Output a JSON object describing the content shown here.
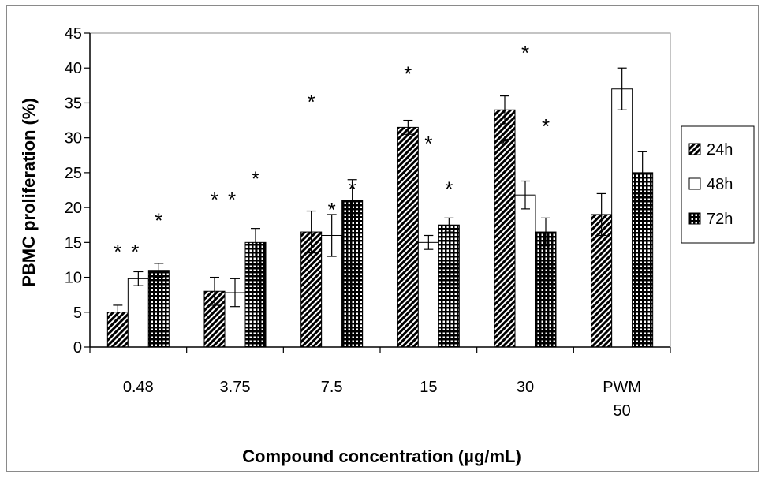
{
  "chart_data": {
    "type": "bar",
    "title": "",
    "xlabel": "Compound concentration (µg/mL)",
    "ylabel": "PBMC proliferation (%)",
    "ylim": [
      0,
      45
    ],
    "yticks": [
      0,
      5,
      10,
      15,
      20,
      25,
      30,
      35,
      40,
      45
    ],
    "categories": [
      "0.48",
      "3.75",
      "7.5",
      "15",
      "30",
      "PWM 50"
    ],
    "category_lines": [
      [
        "0.48"
      ],
      [
        "3.75"
      ],
      [
        "7.5"
      ],
      [
        "15"
      ],
      [
        "30"
      ],
      [
        "PWM",
        "50"
      ]
    ],
    "grid": false,
    "legend_position": "right",
    "series": [
      {
        "name": "24h",
        "values": [
          5,
          8,
          16.5,
          31.5,
          34,
          19
        ],
        "errors": [
          1,
          2,
          3,
          1,
          2,
          3
        ],
        "pattern": "diagonal"
      },
      {
        "name": "48h",
        "values": [
          9.8,
          7.8,
          16,
          15,
          21.8,
          37
        ],
        "errors": [
          1,
          2,
          3,
          1,
          2,
          3
        ],
        "pattern": "white"
      },
      {
        "name": "72h",
        "values": [
          11,
          15,
          21,
          17.5,
          16.5,
          25
        ],
        "errors": [
          1,
          2,
          3,
          1,
          2,
          3
        ],
        "pattern": "grid"
      }
    ],
    "annotations": [
      {
        "text": "*",
        "category": 0,
        "series": 0,
        "y": 14
      },
      {
        "text": "*",
        "category": 0,
        "series": 0,
        "y": 14,
        "offset": 1
      },
      {
        "text": "*",
        "category": 0,
        "series": 2,
        "y": 18.5
      },
      {
        "text": "*",
        "category": 1,
        "series": 0,
        "y": 21.5
      },
      {
        "text": "*",
        "category": 1,
        "series": 0,
        "y": 21.5,
        "offset": 1
      },
      {
        "text": "*",
        "category": 1,
        "series": 2,
        "y": 24.5
      },
      {
        "text": "*",
        "category": 2,
        "series": 0,
        "y": 35.5
      },
      {
        "text": "*",
        "category": 2,
        "series": 1,
        "y": 20
      },
      {
        "text": "*",
        "category": 2,
        "series": 2,
        "y": 23
      },
      {
        "text": "*",
        "category": 3,
        "series": 0,
        "y": 39.5
      },
      {
        "text": "*",
        "category": 3,
        "series": 1,
        "y": 29.5
      },
      {
        "text": "*",
        "category": 3,
        "series": 2,
        "y": 23
      },
      {
        "text": "*",
        "category": 4,
        "series": 0,
        "y": 29.5
      },
      {
        "text": "*",
        "category": 4,
        "series": 1,
        "y": 42.5
      },
      {
        "text": "*",
        "category": 4,
        "series": 2,
        "y": 32
      }
    ]
  }
}
